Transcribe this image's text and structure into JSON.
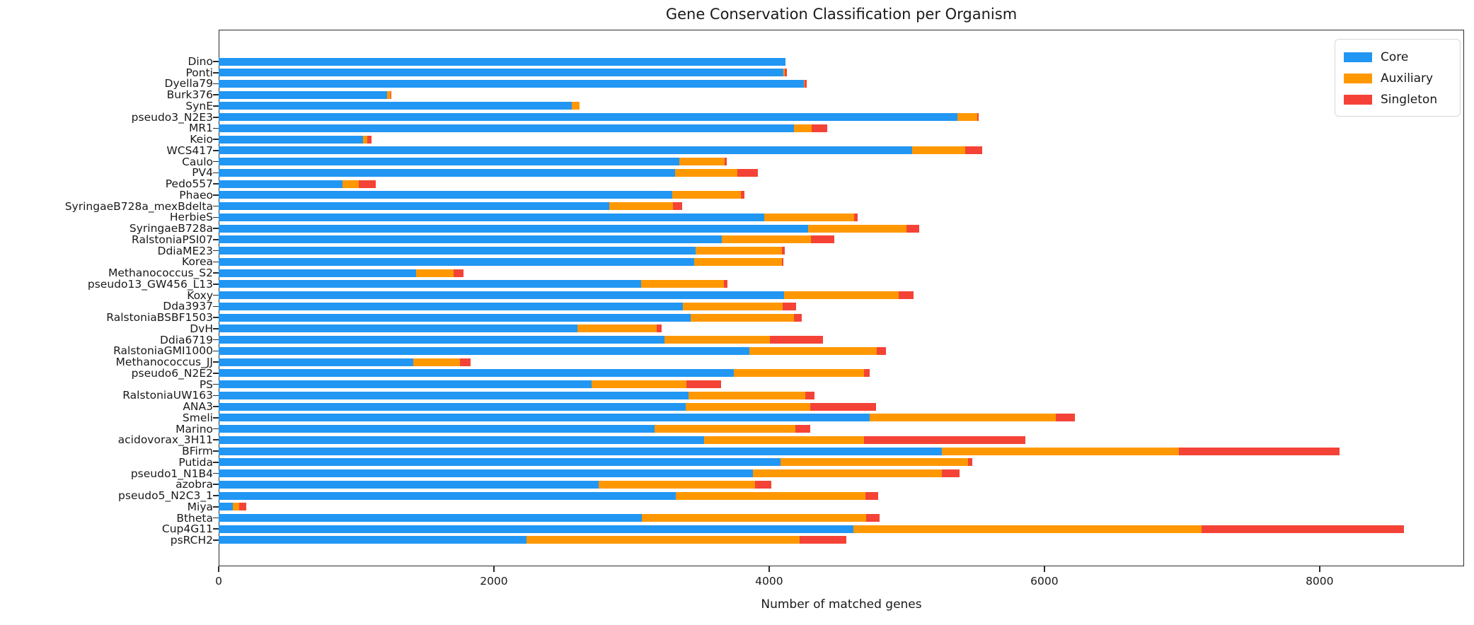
{
  "chart_data": {
    "type": "bar",
    "orientation": "horizontal",
    "stacked": true,
    "title": "Gene Conservation Classification per Organism",
    "xlabel": "Number of matched genes",
    "xlim": [
      0,
      9050
    ],
    "x_ticks": [
      0,
      2000,
      4000,
      6000,
      8000
    ],
    "grid": false,
    "legend_position": "upper right",
    "categories": [
      "Dino",
      "Ponti",
      "Dyella79",
      "Burk376",
      "SynE",
      "pseudo3_N2E3",
      "MR1",
      "Keio",
      "WCS417",
      "Caulo",
      "PV4",
      "Pedo557",
      "Phaeo",
      "SyringaeB728a_mexBdelta",
      "HerbieS",
      "SyringaeB728a",
      "RalstoniaPSI07",
      "DdiaME23",
      "Korea",
      "Methanococcus_S2",
      "pseudo13_GW456_L13",
      "Koxy",
      "Dda3937",
      "RalstoniaBSBF1503",
      "DvH",
      "Ddia6719",
      "RalstoniaGMI1000",
      "Methanococcus_JJ",
      "pseudo6_N2E2",
      "PS",
      "RalstoniaUW163",
      "ANA3",
      "Smeli",
      "Marino",
      "acidovorax_3H11",
      "BFirm",
      "Putida",
      "pseudo1_N1B4",
      "azobra",
      "pseudo5_N2C3_1",
      "Miya",
      "Btheta",
      "Cup4G11",
      "psRCH2"
    ],
    "series": [
      {
        "name": "Core",
        "color": "#2196F3",
        "values": [
          4120,
          4105,
          4250,
          1225,
          2565,
          5370,
          4180,
          1050,
          5040,
          3350,
          3315,
          900,
          3295,
          2840,
          3965,
          4285,
          3655,
          3465,
          3455,
          1435,
          3070,
          4110,
          3375,
          3430,
          2605,
          3240,
          3855,
          1415,
          3745,
          2710,
          3415,
          3395,
          4730,
          3170,
          3525,
          5255,
          4085,
          3880,
          2760,
          3320,
          105,
          3075,
          4610,
          2235
        ]
      },
      {
        "name": "Auxiliary",
        "color": "#FF9800",
        "values": [
          0,
          10,
          10,
          25,
          60,
          140,
          130,
          30,
          385,
          325,
          455,
          120,
          500,
          460,
          655,
          715,
          650,
          630,
          640,
          270,
          600,
          830,
          725,
          750,
          580,
          765,
          925,
          340,
          945,
          690,
          850,
          905,
          1355,
          1020,
          1165,
          1725,
          1360,
          1375,
          1140,
          1380,
          45,
          1630,
          2530,
          1985
        ]
      },
      {
        "name": "Singleton",
        "color": "#F44336",
        "values": [
          0,
          12,
          12,
          5,
          0,
          15,
          110,
          30,
          125,
          15,
          150,
          120,
          25,
          70,
          25,
          90,
          170,
          20,
          10,
          75,
          25,
          110,
          95,
          55,
          35,
          385,
          70,
          75,
          40,
          250,
          65,
          475,
          135,
          110,
          1170,
          1165,
          30,
          130,
          115,
          90,
          50,
          100,
          1475,
          340
        ]
      }
    ],
    "x_tick_labels": [
      "0",
      "2000",
      "4000",
      "6000",
      "8000"
    ]
  }
}
